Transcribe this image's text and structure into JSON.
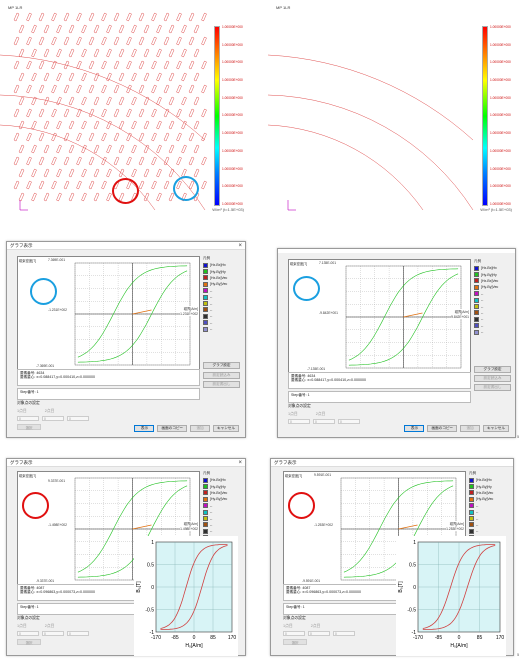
{
  "top_panels": [
    {
      "label": "MP 1LR",
      "units": "W/m³ (t=1.5E+03)",
      "scale": [
        "1.00000E+000",
        "1.00000E+000",
        "1.00000E+000",
        "1.00000E+000",
        "1.00000E+000",
        "1.00000E+000",
        "1.00000E+000",
        "1.00000E+000",
        "1.00000E+000",
        "1.00000E+000",
        "1.00000E+000"
      ]
    },
    {
      "label": "MP 1LR",
      "units": "W/m³ (t=1.5E+03)",
      "scale": [
        "1.00000E+000",
        "1.00000E+000",
        "1.00000E+000",
        "1.00000E+000",
        "1.00000E+000",
        "1.00000E+000",
        "1.00000E+000",
        "1.00000E+000",
        "1.00000E+000",
        "1.00000E+000",
        "1.00000E+000"
      ]
    }
  ],
  "dialogs": [
    {
      "title": "グラフ表示",
      "y_axis": "磁束密度[T]",
      "y_max": "7.369E-001",
      "y_min": "-7.369E-001",
      "x_axis": "磁界[A/m]",
      "x_min": "-1.231E+002",
      "x_max": "1.231E+002",
      "elem_line": "要素番号: 4634",
      "coord_line": "要素重心: x=0.088417,y=0.000410,z=0.000000",
      "step_line": "Step番号: 1"
    },
    {
      "title": "",
      "y_axis": "磁束密度[T]",
      "y_max": "7.135E-001",
      "y_min": "-7.135E-001",
      "x_axis": "磁界[A/m]",
      "x_min": "-9.842E+001",
      "x_max": "9.842E+001",
      "elem_line": "要素番号: 4634",
      "coord_line": "要素重心: x=0.088417,y=0.000410,z=0.000000",
      "step_line": "Step番号: 1"
    },
    {
      "title": "グラフ表示",
      "y_axis": "磁束密度[T]",
      "y_max": "9.337E-001",
      "y_min": "-9.337E-001",
      "x_axis": "磁界[A/m]",
      "x_min": "-1.498E+002",
      "x_max": "1.498E+002",
      "elem_line": "要素番号: 4087",
      "coord_line": "要素重心: x=0.096863,y=0.000073,z=0.000000",
      "step_line": "Step番号: 1"
    },
    {
      "title": "グラフ表示",
      "y_axis": "磁束密度[T]",
      "y_max": "9.591E-001",
      "y_min": "-9.591E-001",
      "x_axis": "磁界[A/m]",
      "x_min": "-1.253E+002",
      "x_max": "1.253E+002",
      "elem_line": "要素番号: 4087",
      "coord_line": "要素重心: x=0.096863,y=0.000073,z=0.000000",
      "step_line": "Step番号: 1"
    }
  ],
  "legend": {
    "header": "凡例",
    "items": [
      {
        "label": "[Hx-Bx]Hx",
        "color": "#1010d0"
      },
      {
        "label": "[Hy-By]Hy",
        "color": "#20c020"
      },
      {
        "label": "[Hx-Bx]Vec",
        "color": "#c02020"
      },
      {
        "label": "[Hy-By]Vec",
        "color": "#e07010"
      },
      {
        "label": "--",
        "color": "#c010c0"
      },
      {
        "label": "--",
        "color": "#10c0c0"
      },
      {
        "label": "--",
        "color": "#c0c010"
      },
      {
        "label": "--",
        "color": "#a05010"
      },
      {
        "label": "--",
        "color": "#303030"
      },
      {
        "label": "--",
        "color": "#5050c0"
      },
      {
        "label": "--",
        "color": "#9090d0"
      }
    ]
  },
  "buttons": {
    "graph_settings": "グラフ設定",
    "load_settings": "設定読込み",
    "save_settings": "設定書出し",
    "display": "表示",
    "copy_screen": "画面のコピー",
    "add": "追加",
    "cancel": "キャンセル",
    "select": "選択"
  },
  "target_points": {
    "label": "対象点の設定",
    "option1": "1点目",
    "option2": "2点目",
    "fields": [
      "0",
      "0",
      "0"
    ]
  },
  "inset_chart": {
    "type": "line",
    "xlabel": "H₀[A/m]",
    "ylabel": "B₀[T]",
    "x_ticks": [
      "-170",
      "-85",
      "0",
      "85",
      "170"
    ],
    "y_ticks": [
      "1",
      "0.5",
      "0",
      "-0.5",
      "-1"
    ]
  },
  "chart_data": [
    {
      "type": "line",
      "xlabel": "磁界[A/m]",
      "ylabel": "磁束密度[T]",
      "series": [
        {
          "name": "[Hy-By]Hy",
          "color": "#20c020"
        },
        {
          "name": "[Hy-By]Vec",
          "color": "#e07010"
        }
      ]
    },
    {
      "type": "line",
      "xlabel": "H₀[A/m]",
      "ylabel": "B₀[T]",
      "xlim": [
        -170,
        170
      ],
      "ylim": [
        -1,
        1
      ],
      "series": [
        {
          "name": "",
          "color": "#d04040"
        }
      ]
    }
  ],
  "colors": {
    "marker_red": "#e01010",
    "marker_blue": "#1a9fe0",
    "inset_bg": "#d8f4f6"
  },
  "page_notes": [
    "5",
    "5"
  ]
}
